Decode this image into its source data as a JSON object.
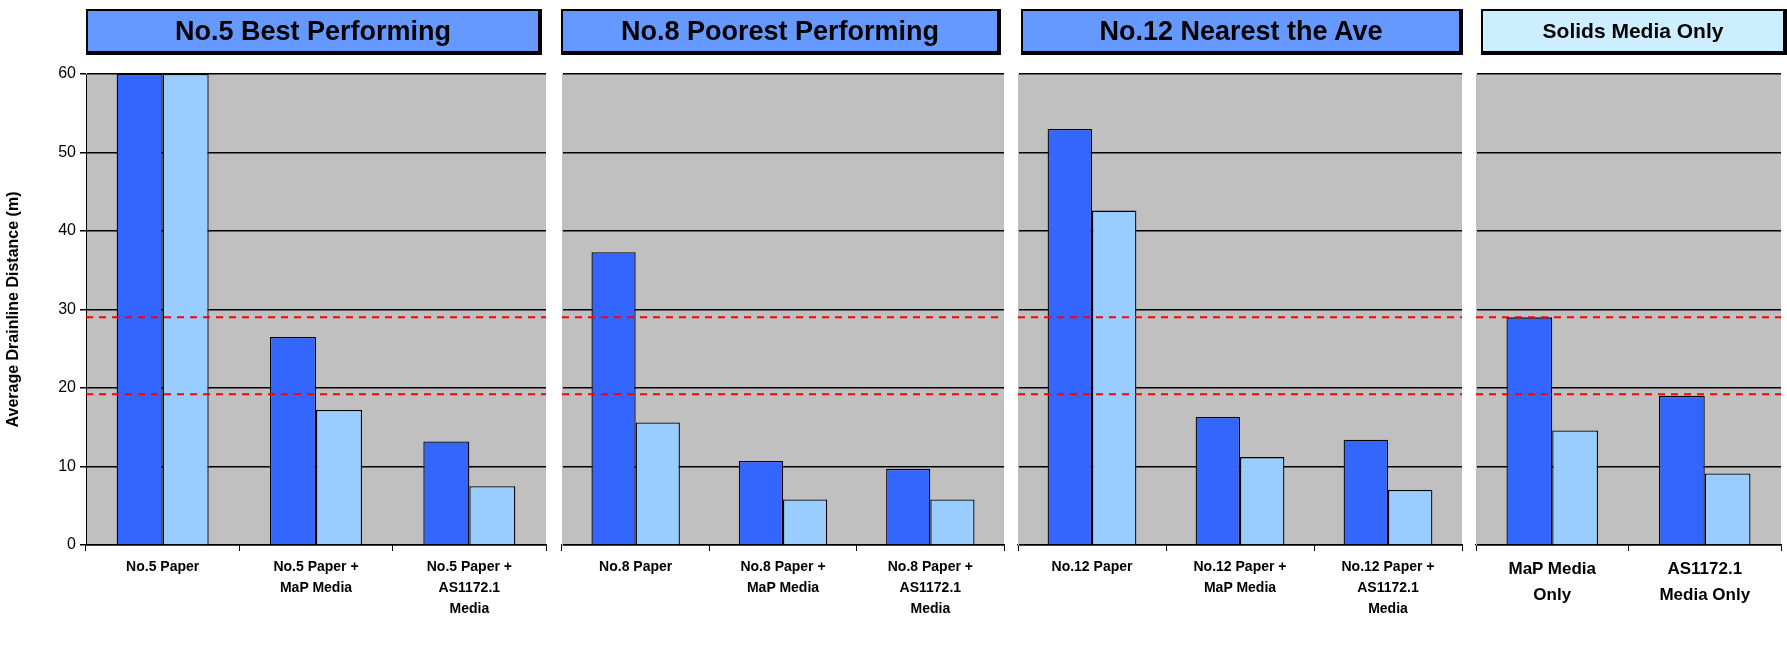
{
  "chart_data": [
    {
      "type": "bar",
      "title": "No.5 Best Performing",
      "ylabel": "Average Drainline Distance (m)",
      "categories": [
        "No.5 Paper",
        "No.5 Paper + MaP Media",
        "No.5 Paper + AS1172.1 Media"
      ],
      "series": [
        {
          "color": "#3366ff",
          "values": [
            60,
            26.5,
            13.2
          ]
        },
        {
          "color": "#99ccff",
          "values": [
            60,
            17.2,
            7.5
          ]
        }
      ],
      "ylim": [
        0,
        60
      ],
      "yticks": [
        0,
        10,
        20,
        30,
        40,
        50,
        60
      ],
      "grid": "y",
      "ref_lines": [
        {
          "axis": "y",
          "value": 29,
          "color": "#ff0000",
          "line_style": "dashed"
        },
        {
          "axis": "y",
          "value": 19.2,
          "color": "#ff0000",
          "line_style": "dashed"
        }
      ]
    },
    {
      "type": "bar",
      "title": "No.8 Poorest Performing",
      "categories": [
        "No.8 Paper",
        "No.8 Paper + MaP Media",
        "No.8 Paper + AS1172.1 Media"
      ],
      "series": [
        {
          "color": "#3366ff",
          "values": [
            37.3,
            10.7,
            9.7
          ]
        },
        {
          "color": "#99ccff",
          "values": [
            15.6,
            5.8,
            5.8
          ]
        }
      ],
      "ylim": [
        0,
        60
      ],
      "yticks": [
        0,
        10,
        20,
        30,
        40,
        50,
        60
      ],
      "grid": "y",
      "tick_labels": "x",
      "ref_lines": [
        {
          "axis": "y",
          "value": 29,
          "color": "#ff0000",
          "line_style": "dashed"
        },
        {
          "axis": "y",
          "value": 19.2,
          "color": "#ff0000",
          "line_style": "dashed"
        }
      ]
    },
    {
      "type": "bar",
      "title": "No.12 Nearest the Ave",
      "categories": [
        "No.12 Paper",
        "No.12 Paper + MaP Media",
        "No.12 Paper + AS1172.1 Media"
      ],
      "series": [
        {
          "color": "#3366ff",
          "values": [
            53.0,
            16.3,
            13.4
          ]
        },
        {
          "color": "#99ccff",
          "values": [
            42.6,
            11.2,
            7.0
          ]
        }
      ],
      "ylim": [
        0,
        60
      ],
      "yticks": [
        0,
        10,
        20,
        30,
        40,
        50,
        60
      ],
      "grid": "y",
      "tick_labels": "x",
      "ref_lines": [
        {
          "axis": "y",
          "value": 29,
          "color": "#ff0000",
          "line_style": "dashed"
        },
        {
          "axis": "y",
          "value": 19.2,
          "color": "#ff0000",
          "line_style": "dashed"
        }
      ]
    },
    {
      "type": "bar",
      "title": "Solids Media Only",
      "categories": [
        "MaP Media Only",
        "AS1172.1 Media Only"
      ],
      "series": [
        {
          "color": "#3366ff",
          "values": [
            29,
            19.0
          ]
        },
        {
          "color": "#99ccff",
          "values": [
            14.6,
            9.1
          ]
        }
      ],
      "ylim": [
        0,
        60
      ],
      "yticks": [
        0,
        10,
        20,
        30,
        40,
        50,
        60
      ],
      "grid": "y",
      "tick_labels": "x",
      "ref_lines": [
        {
          "axis": "y",
          "value": 29,
          "color": "#ff0000",
          "line_style": "dashed"
        },
        {
          "axis": "y",
          "value": 19.2,
          "color": "#ff0000",
          "line_style": "dashed"
        }
      ]
    }
  ]
}
